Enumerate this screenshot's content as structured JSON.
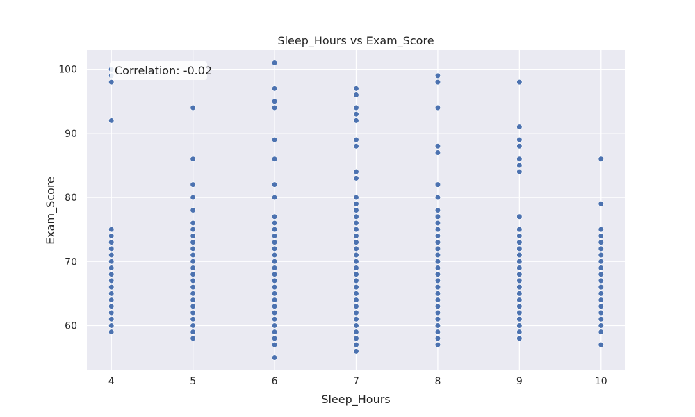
{
  "chart_data": {
    "type": "scatter",
    "title": "Sleep_Hours vs Exam_Score",
    "xlabel": "Sleep_Hours",
    "ylabel": "Exam_Score",
    "xlim": [
      3.7,
      10.3
    ],
    "ylim": [
      53,
      103
    ],
    "xticks": [
      4,
      5,
      6,
      7,
      8,
      9,
      10
    ],
    "yticks": [
      60,
      70,
      80,
      90,
      100
    ],
    "grid": true,
    "annotation": "Correlation: -0.02",
    "annotation_placement": "top-left",
    "colors": {
      "background": "#eaeaf2",
      "grid": "#ffffff",
      "point": "#4c72b0"
    },
    "series": [
      {
        "points_by_x": [
          {
            "x": 4,
            "y": [
              59,
              60,
              61,
              62,
              63,
              64,
              65,
              66,
              67,
              68,
              69,
              70,
              71,
              72,
              73,
              74,
              75,
              92,
              98,
              99,
              100
            ]
          },
          {
            "x": 5,
            "y": [
              58,
              59,
              60,
              61,
              62,
              63,
              64,
              65,
              66,
              67,
              68,
              69,
              70,
              71,
              72,
              73,
              74,
              75,
              76,
              78,
              80,
              82,
              86,
              94
            ]
          },
          {
            "x": 6,
            "y": [
              55,
              57,
              58,
              59,
              60,
              61,
              62,
              63,
              64,
              65,
              66,
              67,
              68,
              69,
              70,
              71,
              72,
              73,
              74,
              75,
              76,
              77,
              80,
              82,
              86,
              89,
              94,
              95,
              97,
              101
            ]
          },
          {
            "x": 7,
            "y": [
              56,
              57,
              58,
              59,
              60,
              61,
              62,
              63,
              64,
              65,
              66,
              67,
              68,
              69,
              70,
              71,
              72,
              73,
              74,
              75,
              76,
              77,
              78,
              79,
              80,
              83,
              84,
              88,
              89,
              92,
              93,
              94,
              96,
              97
            ]
          },
          {
            "x": 8,
            "y": [
              57,
              58,
              59,
              60,
              61,
              62,
              63,
              64,
              65,
              66,
              67,
              68,
              69,
              70,
              71,
              72,
              73,
              74,
              75,
              76,
              77,
              78,
              80,
              82,
              87,
              88,
              94,
              98,
              99
            ]
          },
          {
            "x": 9,
            "y": [
              58,
              59,
              60,
              61,
              62,
              63,
              64,
              65,
              66,
              67,
              68,
              69,
              70,
              71,
              72,
              73,
              74,
              75,
              77,
              84,
              85,
              86,
              88,
              89,
              91,
              98
            ]
          },
          {
            "x": 10,
            "y": [
              57,
              59,
              60,
              61,
              62,
              63,
              64,
              65,
              66,
              67,
              68,
              69,
              70,
              71,
              72,
              73,
              74,
              75,
              79,
              86
            ]
          }
        ]
      }
    ]
  }
}
